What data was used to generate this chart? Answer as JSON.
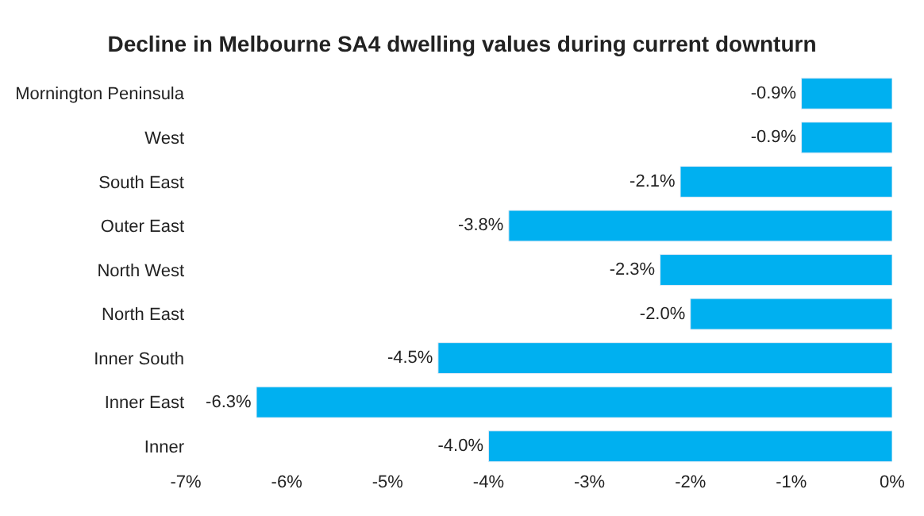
{
  "chart_data": {
    "type": "bar",
    "orientation": "horizontal",
    "title": "Decline in Melbourne SA4 dwelling values during current downturn",
    "categories": [
      "Mornington Peninsula",
      "West",
      "South East",
      "Outer East",
      "North West",
      "North East",
      "Inner South",
      "Inner East",
      "Inner"
    ],
    "values": [
      -0.9,
      -0.9,
      -2.1,
      -3.8,
      -2.3,
      -2.0,
      -4.5,
      -6.3,
      -4.0
    ],
    "value_labels": [
      "-0.9%",
      "-0.9%",
      "-2.1%",
      "-3.8%",
      "-2.3%",
      "-2.0%",
      "-4.5%",
      "-6.3%",
      "-4.0%"
    ],
    "color": "#00b0f0",
    "xlim": [
      -7,
      0
    ],
    "xticks": [
      {
        "value": -7,
        "label": "-7%"
      },
      {
        "value": -6,
        "label": "-6%"
      },
      {
        "value": -5,
        "label": "-5%"
      },
      {
        "value": -4,
        "label": "-4%"
      },
      {
        "value": -3,
        "label": "-3%"
      },
      {
        "value": -2,
        "label": "-2%"
      },
      {
        "value": -1,
        "label": "-1%"
      },
      {
        "value": 0,
        "label": "0%"
      }
    ],
    "legend": false
  }
}
